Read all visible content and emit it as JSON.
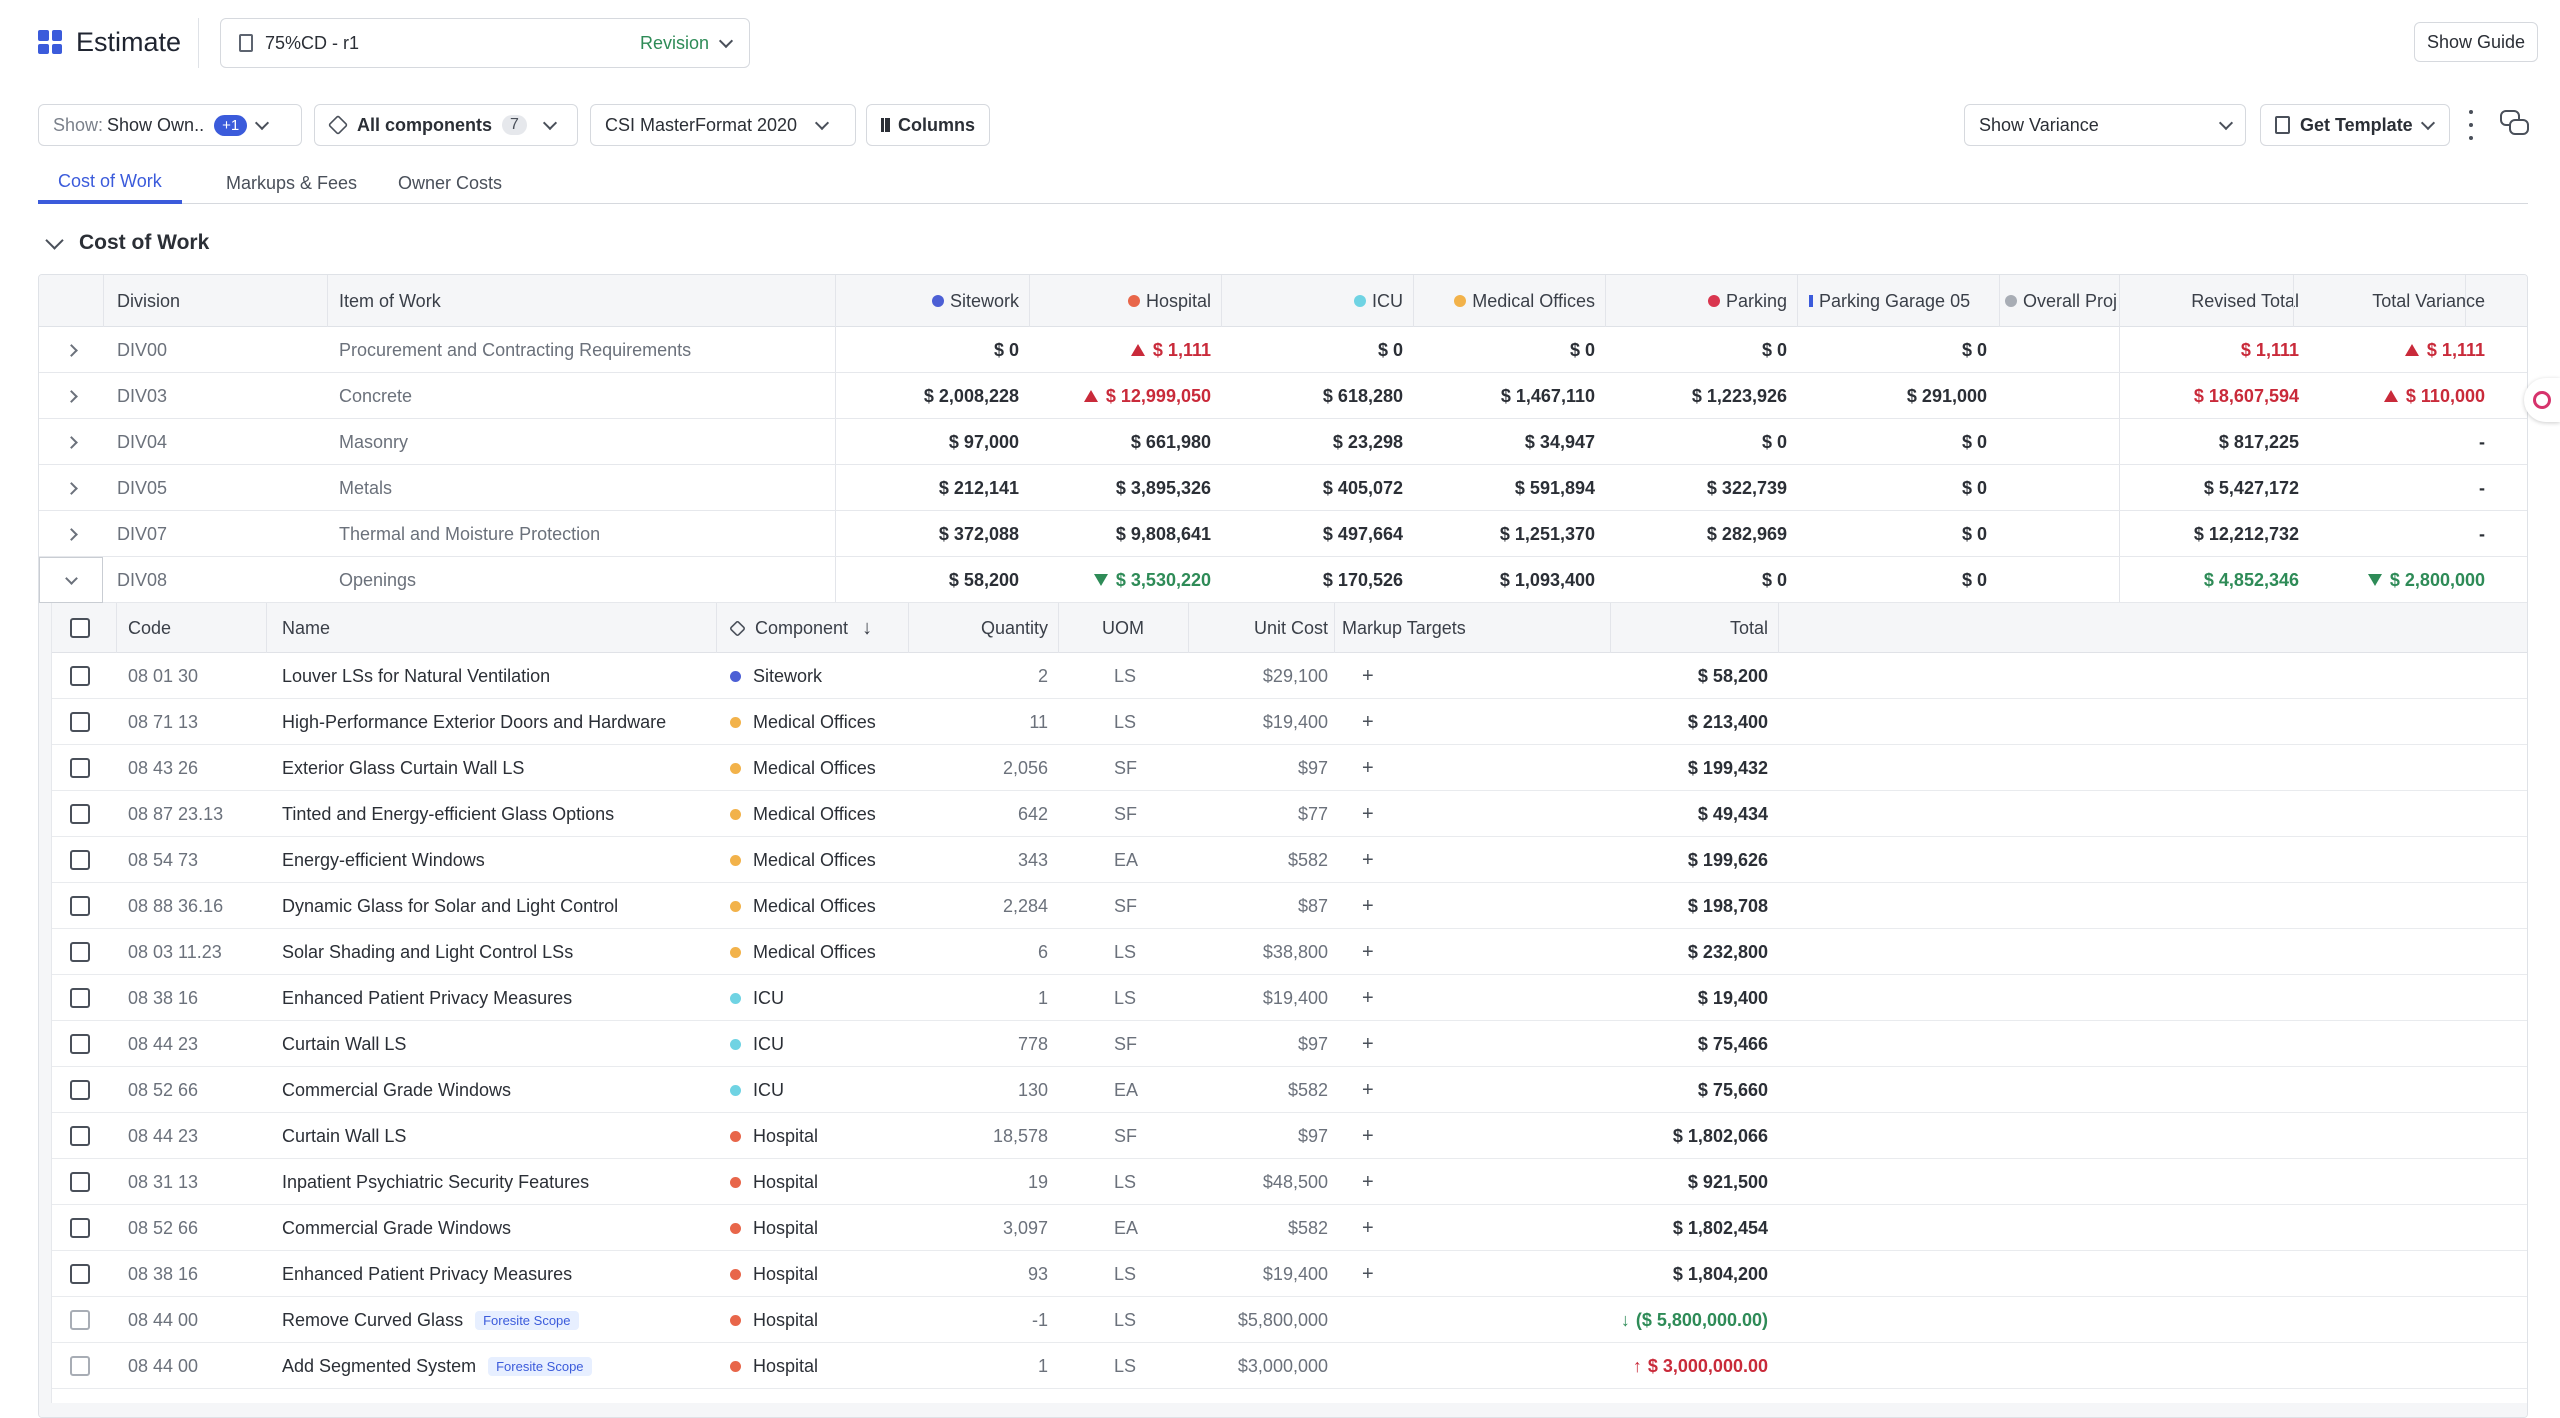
{
  "app": {
    "title": "Estimate",
    "document": "75%CD - r1",
    "revision": "Revision",
    "show_guide": "Show Guide"
  },
  "toolbar": {
    "show_label": "Show:",
    "show_value": "Show Own..",
    "show_pill": "+1",
    "components": "All components",
    "components_count": "7",
    "format": "CSI MasterFormat 2020",
    "columns": "Columns",
    "variance": "Show Variance",
    "template": "Get Template"
  },
  "tabs": [
    "Cost of Work",
    "Markups & Fees",
    "Owner Costs"
  ],
  "section": {
    "title": "Cost of Work"
  },
  "colors": {
    "sitework": "#4c5fd5",
    "hospital": "#e8664a",
    "icu": "#6fd3e3",
    "medical": "#f2b24a",
    "parking": "#d9364f",
    "garage": "#3b5bdb",
    "overall": "#a8adb5",
    "accent": "#3b5bdb"
  },
  "headers": {
    "division": "Division",
    "item": "Item of Work",
    "sitework": "Sitework",
    "hospital": "Hospital",
    "icu": "ICU",
    "medical": "Medical Offices",
    "parking": "Parking",
    "garage": "Parking Garage 05",
    "overall": "Overall Proj",
    "revised": "Revised Total",
    "variance": "Total Variance"
  },
  "rows": [
    {
      "div": "DIV00",
      "item": "Procurement and Contracting Requirements",
      "sitework": "$ 0",
      "hospital": "$ 1,111",
      "hospital_flag": "up",
      "icu": "$ 0",
      "medical": "$ 0",
      "parking": "$ 0",
      "garage": "$ 0",
      "revised": "$ 1,111",
      "revised_flag": "red",
      "variance": "$ 1,111",
      "variance_flag": "up"
    },
    {
      "div": "DIV03",
      "item": "Concrete",
      "sitework": "$ 2,008,228",
      "hospital": "$ 12,999,050",
      "hospital_flag": "up",
      "icu": "$ 618,280",
      "medical": "$ 1,467,110",
      "parking": "$ 1,223,926",
      "garage": "$ 291,000",
      "revised": "$ 18,607,594",
      "revised_flag": "red",
      "variance": "$ 110,000",
      "variance_flag": "up"
    },
    {
      "div": "DIV04",
      "item": "Masonry",
      "sitework": "$ 97,000",
      "hospital": "$ 661,980",
      "hospital_flag": "",
      "icu": "$ 23,298",
      "medical": "$ 34,947",
      "parking": "$ 0",
      "garage": "$ 0",
      "revised": "$ 817,225",
      "revised_flag": "",
      "variance": "-",
      "variance_flag": ""
    },
    {
      "div": "DIV05",
      "item": "Metals",
      "sitework": "$ 212,141",
      "hospital": "$ 3,895,326",
      "hospital_flag": "",
      "icu": "$ 405,072",
      "medical": "$ 591,894",
      "parking": "$ 322,739",
      "garage": "$ 0",
      "revised": "$ 5,427,172",
      "revised_flag": "",
      "variance": "-",
      "variance_flag": ""
    },
    {
      "div": "DIV07",
      "item": "Thermal and Moisture Protection",
      "sitework": "$ 372,088",
      "hospital": "$ 9,808,641",
      "hospital_flag": "",
      "icu": "$ 497,664",
      "medical": "$ 1,251,370",
      "parking": "$ 282,969",
      "garage": "$ 0",
      "revised": "$ 12,212,732",
      "revised_flag": "",
      "variance": "-",
      "variance_flag": ""
    },
    {
      "div": "DIV08",
      "item": "Openings",
      "sitework": "$ 58,200",
      "hospital": "$ 3,530,220",
      "hospital_flag": "down",
      "icu": "$ 170,526",
      "medical": "$ 1,093,400",
      "parking": "$ 0",
      "garage": "$ 0",
      "revised": "$ 4,852,346",
      "revised_flag": "green",
      "variance": "$ 2,800,000",
      "variance_flag": "down"
    }
  ],
  "sub_headers": {
    "code": "Code",
    "name": "Name",
    "component": "Component",
    "quantity": "Quantity",
    "uom": "UOM",
    "unit_cost": "Unit Cost",
    "markup": "Markup Targets",
    "total": "Total"
  },
  "sub_rows": [
    {
      "code": "08 01 30",
      "name": "Louver LSs for Natural Ventilation",
      "tag": "",
      "comp": "Sitework",
      "color": "#4c5fd5",
      "qty": "2",
      "uom": "LS",
      "unit": "$29,100",
      "markup": "+",
      "total": "$ 58,200",
      "flag": ""
    },
    {
      "code": "08 71 13",
      "name": "High-Performance Exterior Doors and Hardware",
      "tag": "",
      "comp": "Medical Offices",
      "color": "#f2b24a",
      "qty": "11",
      "uom": "LS",
      "unit": "$19,400",
      "markup": "+",
      "total": "$ 213,400",
      "flag": ""
    },
    {
      "code": "08 43 26",
      "name": "Exterior Glass Curtain Wall LS",
      "tag": "",
      "comp": "Medical Offices",
      "color": "#f2b24a",
      "qty": "2,056",
      "uom": "SF",
      "unit": "$97",
      "markup": "+",
      "total": "$ 199,432",
      "flag": ""
    },
    {
      "code": "08 87 23.13",
      "name": "Tinted and Energy-efficient Glass Options",
      "tag": "",
      "comp": "Medical Offices",
      "color": "#f2b24a",
      "qty": "642",
      "uom": "SF",
      "unit": "$77",
      "markup": "+",
      "total": "$ 49,434",
      "flag": ""
    },
    {
      "code": "08 54 73",
      "name": "Energy-efficient Windows",
      "tag": "",
      "comp": "Medical Offices",
      "color": "#f2b24a",
      "qty": "343",
      "uom": "EA",
      "unit": "$582",
      "markup": "+",
      "total": "$ 199,626",
      "flag": ""
    },
    {
      "code": "08 88 36.16",
      "name": "Dynamic Glass for Solar and Light Control",
      "tag": "",
      "comp": "Medical Offices",
      "color": "#f2b24a",
      "qty": "2,284",
      "uom": "SF",
      "unit": "$87",
      "markup": "+",
      "total": "$ 198,708",
      "flag": ""
    },
    {
      "code": "08 03 11.23",
      "name": "Solar Shading and Light Control LSs",
      "tag": "",
      "comp": "Medical Offices",
      "color": "#f2b24a",
      "qty": "6",
      "uom": "LS",
      "unit": "$38,800",
      "markup": "+",
      "total": "$ 232,800",
      "flag": ""
    },
    {
      "code": "08 38 16",
      "name": "Enhanced Patient Privacy Measures",
      "tag": "",
      "comp": "ICU",
      "color": "#6fd3e3",
      "qty": "1",
      "uom": "LS",
      "unit": "$19,400",
      "markup": "+",
      "total": "$ 19,400",
      "flag": ""
    },
    {
      "code": "08 44 23",
      "name": "Curtain Wall LS",
      "tag": "",
      "comp": "ICU",
      "color": "#6fd3e3",
      "qty": "778",
      "uom": "SF",
      "unit": "$97",
      "markup": "+",
      "total": "$ 75,466",
      "flag": ""
    },
    {
      "code": "08 52 66",
      "name": "Commercial Grade Windows",
      "tag": "",
      "comp": "ICU",
      "color": "#6fd3e3",
      "qty": "130",
      "uom": "EA",
      "unit": "$582",
      "markup": "+",
      "total": "$ 75,660",
      "flag": ""
    },
    {
      "code": "08 44 23",
      "name": "Curtain Wall LS",
      "tag": "",
      "comp": "Hospital",
      "color": "#e8664a",
      "qty": "18,578",
      "uom": "SF",
      "unit": "$97",
      "markup": "+",
      "total": "$ 1,802,066",
      "flag": ""
    },
    {
      "code": "08 31 13",
      "name": "Inpatient Psychiatric Security Features",
      "tag": "",
      "comp": "Hospital",
      "color": "#e8664a",
      "qty": "19",
      "uom": "LS",
      "unit": "$48,500",
      "markup": "+",
      "total": "$ 921,500",
      "flag": ""
    },
    {
      "code": "08 52 66",
      "name": "Commercial Grade Windows",
      "tag": "",
      "comp": "Hospital",
      "color": "#e8664a",
      "qty": "3,097",
      "uom": "EA",
      "unit": "$582",
      "markup": "+",
      "total": "$ 1,802,454",
      "flag": ""
    },
    {
      "code": "08 38 16",
      "name": "Enhanced Patient Privacy Measures",
      "tag": "",
      "comp": "Hospital",
      "color": "#e8664a",
      "qty": "93",
      "uom": "LS",
      "unit": "$19,400",
      "markup": "+",
      "total": "$ 1,804,200",
      "flag": ""
    },
    {
      "code": "08 44 00",
      "name": "Remove Curved Glass",
      "tag": "Foresite Scope",
      "comp": "Hospital",
      "color": "#e8664a",
      "qty": "-1",
      "uom": "LS",
      "unit": "$5,800,000",
      "markup": "",
      "total": "($ 5,800,000.00)",
      "flag": "down"
    },
    {
      "code": "08 44 00",
      "name": "Add Segmented System",
      "tag": "Foresite Scope",
      "comp": "Hospital",
      "color": "#e8664a",
      "qty": "1",
      "uom": "LS",
      "unit": "$3,000,000",
      "markup": "",
      "total": "$ 3,000,000.00",
      "flag": "up"
    }
  ]
}
